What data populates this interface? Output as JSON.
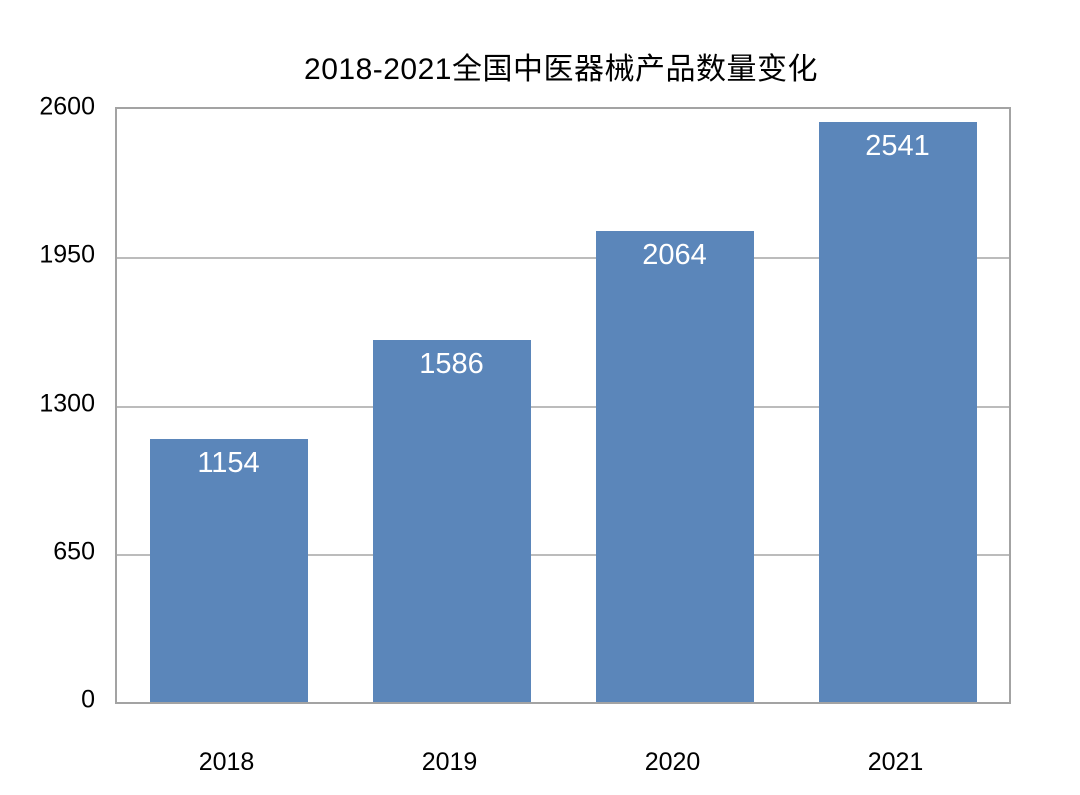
{
  "chart_data": {
    "type": "bar",
    "title": "2018-2021全国中医器械产品数量变化",
    "categories": [
      "2018",
      "2019",
      "2020",
      "2021"
    ],
    "values": [
      1154,
      1586,
      2064,
      2541
    ],
    "value_labels": [
      "1154",
      "1586",
      "2064",
      "2541"
    ],
    "xlabel": "",
    "ylabel": "",
    "ylim": [
      0,
      2600
    ],
    "yticks": [
      0,
      650,
      1300,
      1950,
      2600
    ],
    "grid": "horizontal",
    "legend_position": "none",
    "colors": {
      "bar_fill": "#5b86ba",
      "bar_value_text": "#ffffff",
      "axis_text": "#000000",
      "plot_border": "#a3a3a3",
      "gridline": "#bcbcbc",
      "background": "#ffffff"
    }
  }
}
